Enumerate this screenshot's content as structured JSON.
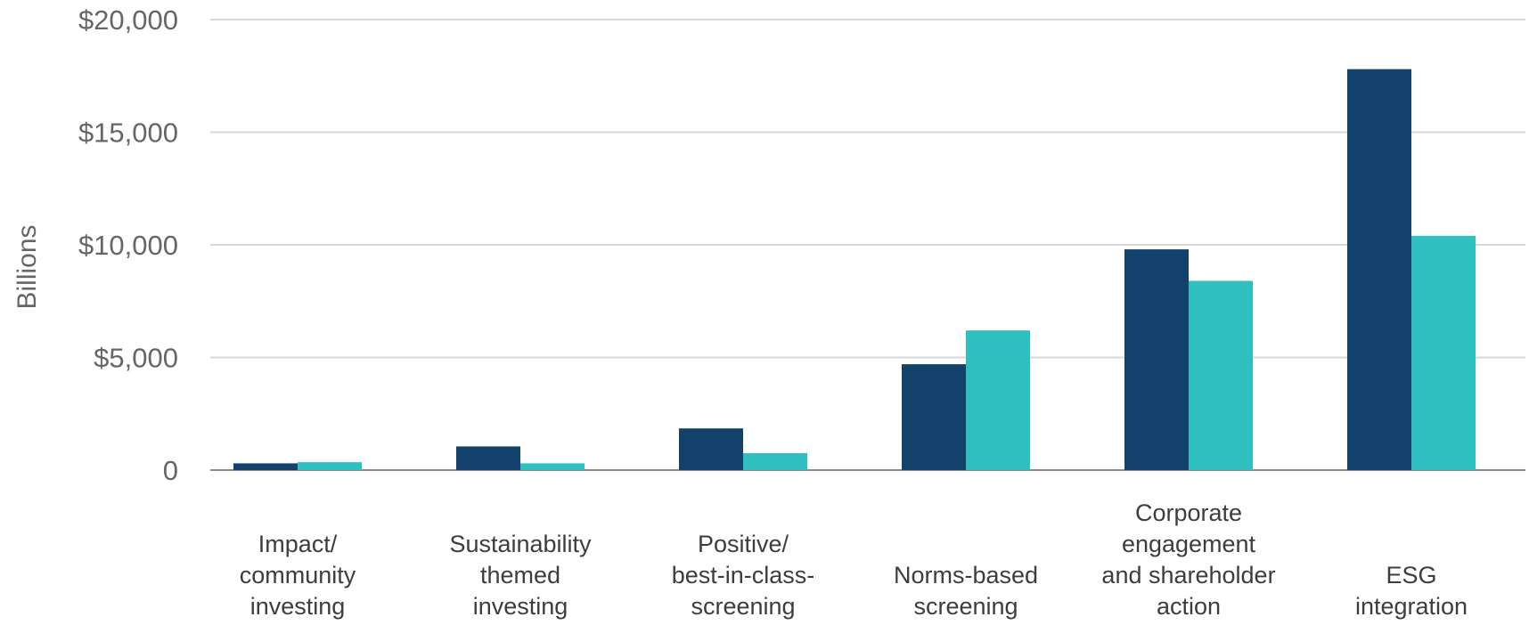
{
  "chart_data": {
    "type": "bar",
    "title": "",
    "xlabel": "",
    "ylabel": "Billions",
    "ylim": [
      0,
      20000
    ],
    "yticks": [
      {
        "value": 0,
        "label": "0"
      },
      {
        "value": 5000,
        "label": "$5,000"
      },
      {
        "value": 10000,
        "label": "$10,000"
      },
      {
        "value": 15000,
        "label": "$15,000"
      },
      {
        "value": 20000,
        "label": "$20,000"
      }
    ],
    "grid": true,
    "legend": "none",
    "categories": [
      [
        "Impact/",
        "community",
        "investing"
      ],
      [
        "Sustainability",
        "themed",
        "investing"
      ],
      [
        "Positive/",
        "best-in-class-",
        "screening"
      ],
      [
        "Norms-based",
        "screening"
      ],
      [
        "Corporate",
        "engagement",
        "and shareholder",
        "action"
      ],
      [
        "ESG",
        "integration"
      ]
    ],
    "series": [
      {
        "color": "#12426b",
        "values": [
          300,
          1050,
          1850,
          4700,
          9800,
          17800
        ]
      },
      {
        "color": "#2fbfbf",
        "values": [
          350,
          300,
          750,
          6200,
          8400,
          10400
        ]
      }
    ]
  }
}
